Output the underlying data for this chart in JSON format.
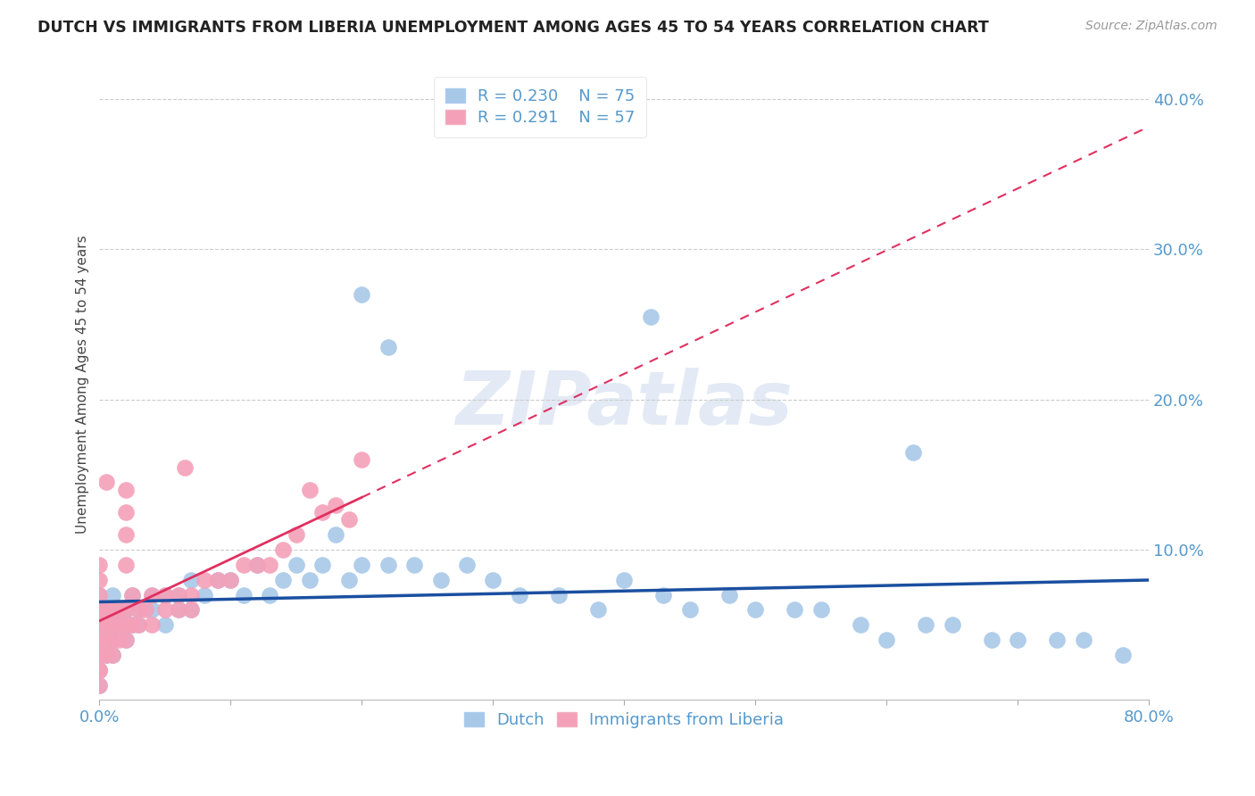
{
  "title": "DUTCH VS IMMIGRANTS FROM LIBERIA UNEMPLOYMENT AMONG AGES 45 TO 54 YEARS CORRELATION CHART",
  "source": "Source: ZipAtlas.com",
  "ylabel": "Unemployment Among Ages 45 to 54 years",
  "R_dutch": 0.23,
  "N_dutch": 75,
  "R_liberia": 0.291,
  "N_liberia": 57,
  "dutch_color": "#a8c8e8",
  "liberia_color": "#f4a0b8",
  "dutch_line_color": "#1a4fa0",
  "liberia_line_color": "#e03060",
  "background_color": "#ffffff",
  "grid_color": "#cccccc",
  "xlim": [
    0.0,
    0.8
  ],
  "ylim": [
    0.0,
    0.42
  ],
  "yticks": [
    0.0,
    0.1,
    0.2,
    0.3,
    0.4
  ],
  "xtick_positions": [
    0.0,
    0.1,
    0.2,
    0.3,
    0.4,
    0.5,
    0.6,
    0.7,
    0.8
  ],
  "watermark_text": "ZIPatlas",
  "dutch_x": [
    0.0,
    0.0,
    0.0,
    0.0,
    0.0,
    0.0,
    0.0,
    0.0,
    0.0,
    0.0,
    0.005,
    0.005,
    0.01,
    0.01,
    0.01,
    0.01,
    0.01,
    0.015,
    0.015,
    0.02,
    0.02,
    0.02,
    0.025,
    0.025,
    0.03,
    0.03,
    0.04,
    0.04,
    0.05,
    0.05,
    0.06,
    0.06,
    0.07,
    0.07,
    0.08,
    0.09,
    0.1,
    0.11,
    0.12,
    0.13,
    0.14,
    0.15,
    0.16,
    0.17,
    0.18,
    0.19,
    0.2,
    0.22,
    0.24,
    0.26,
    0.28,
    0.3,
    0.32,
    0.35,
    0.38,
    0.4,
    0.43,
    0.45,
    0.48,
    0.5,
    0.53,
    0.55,
    0.58,
    0.6,
    0.63,
    0.65,
    0.68,
    0.7,
    0.73,
    0.75,
    0.78,
    0.2,
    0.22,
    0.42,
    0.62
  ],
  "dutch_y": [
    0.02,
    0.03,
    0.04,
    0.05,
    0.06,
    0.07,
    0.01,
    0.02,
    0.03,
    0.04,
    0.05,
    0.03,
    0.04,
    0.06,
    0.05,
    0.07,
    0.03,
    0.05,
    0.06,
    0.04,
    0.06,
    0.05,
    0.05,
    0.07,
    0.05,
    0.06,
    0.06,
    0.07,
    0.07,
    0.05,
    0.07,
    0.06,
    0.06,
    0.08,
    0.07,
    0.08,
    0.08,
    0.07,
    0.09,
    0.07,
    0.08,
    0.09,
    0.08,
    0.09,
    0.11,
    0.08,
    0.09,
    0.09,
    0.09,
    0.08,
    0.09,
    0.08,
    0.07,
    0.07,
    0.06,
    0.08,
    0.07,
    0.06,
    0.07,
    0.06,
    0.06,
    0.06,
    0.05,
    0.04,
    0.05,
    0.05,
    0.04,
    0.04,
    0.04,
    0.04,
    0.03,
    0.27,
    0.235,
    0.255,
    0.165
  ],
  "liberia_x": [
    0.0,
    0.0,
    0.0,
    0.0,
    0.0,
    0.0,
    0.0,
    0.0,
    0.0,
    0.0,
    0.0,
    0.005,
    0.005,
    0.005,
    0.005,
    0.01,
    0.01,
    0.01,
    0.01,
    0.015,
    0.015,
    0.015,
    0.02,
    0.02,
    0.02,
    0.025,
    0.025,
    0.03,
    0.03,
    0.035,
    0.04,
    0.04,
    0.05,
    0.05,
    0.06,
    0.06,
    0.07,
    0.07,
    0.08,
    0.09,
    0.1,
    0.11,
    0.12,
    0.13,
    0.14,
    0.15,
    0.16,
    0.17,
    0.18,
    0.19,
    0.2,
    0.02,
    0.065,
    0.005,
    0.02,
    0.02,
    0.02
  ],
  "liberia_y": [
    0.02,
    0.03,
    0.04,
    0.05,
    0.06,
    0.07,
    0.01,
    0.08,
    0.09,
    0.02,
    0.03,
    0.04,
    0.06,
    0.05,
    0.03,
    0.04,
    0.06,
    0.05,
    0.03,
    0.05,
    0.06,
    0.04,
    0.06,
    0.05,
    0.04,
    0.05,
    0.07,
    0.05,
    0.06,
    0.06,
    0.07,
    0.05,
    0.07,
    0.06,
    0.07,
    0.06,
    0.07,
    0.06,
    0.08,
    0.08,
    0.08,
    0.09,
    0.09,
    0.09,
    0.1,
    0.11,
    0.14,
    0.125,
    0.13,
    0.12,
    0.16,
    0.09,
    0.155,
    0.145,
    0.125,
    0.11,
    0.14
  ]
}
